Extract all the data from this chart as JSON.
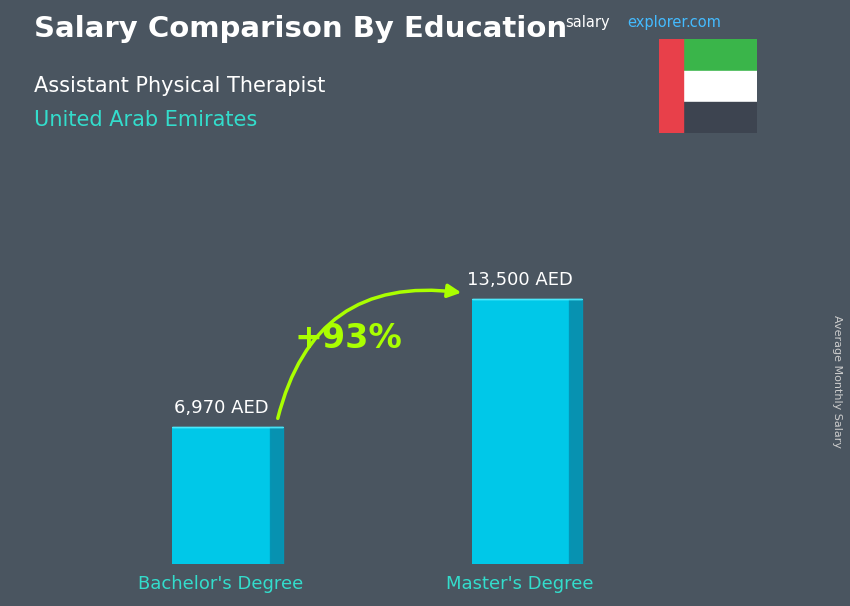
{
  "title1": "Salary Comparison By Education",
  "title2": "Assistant Physical Therapist",
  "title3": "United Arab Emirates",
  "categories": [
    "Bachelor's Degree",
    "Master's Degree"
  ],
  "values": [
    6970,
    13500
  ],
  "labels": [
    "6,970 AED",
    "13,500 AED"
  ],
  "pct_change": "+93%",
  "bar_color_face": "#00c8e8",
  "bar_color_right": "#0099bb",
  "bar_color_top": "#55eeff",
  "ylabel": "Average Monthly Salary",
  "bar_width": 0.13,
  "bar_depth": 0.018,
  "ylim": [
    0,
    17000
  ],
  "bg_color": "#4a5560",
  "title_color": "#ffffff",
  "subtitle_color": "#ffffff",
  "country_color": "#33ddcc",
  "xticklabel_color": "#33ddcc",
  "label_color": "#ffffff",
  "pct_color": "#aaff00",
  "arrow_color": "#aaff00",
  "site_color_salary": "#ffffff",
  "site_color_explorer": "#44bbff",
  "site_color_com": "#44bbff",
  "flag_red": "#e8404a",
  "flag_green": "#3ab54a",
  "flag_white": "#ffffff",
  "flag_dark": "#3d4450",
  "flag_bg": "#8a8a9a"
}
